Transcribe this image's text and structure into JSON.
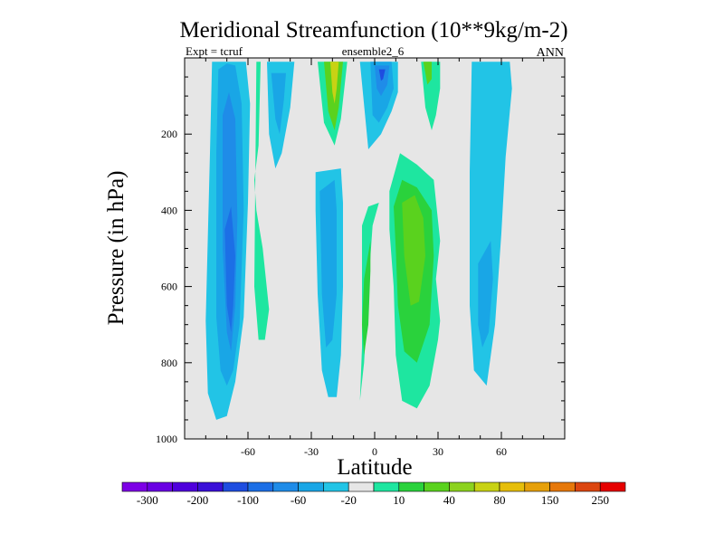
{
  "chart_data": {
    "type": "heatmap",
    "subtype": "filled-contour",
    "title": "Meridional Streamfunction (10**9kg/m-2)",
    "left_label": "Expt = tcruf",
    "center_label": "ensemble2_6",
    "right_label": "ANN",
    "xlabel": "Latitude",
    "ylabel": "Pressure (in hPa)",
    "xlim": [
      -90,
      90
    ],
    "ylim": [
      1000,
      0
    ],
    "x_ticks": [
      -60,
      -30,
      0,
      30,
      60
    ],
    "x_tick_labels": [
      "-60",
      "-30",
      "0",
      "30",
      "60"
    ],
    "y_ticks": [
      200,
      400,
      600,
      800,
      1000
    ],
    "y_tick_labels": [
      "200",
      "400",
      "600",
      "800",
      "1000"
    ],
    "colorbar": {
      "colors": [
        "#7d00e6",
        "#6a00e3",
        "#4f00dc",
        "#3a10d8",
        "#1e4de0",
        "#1c6fe6",
        "#1f8ce8",
        "#19a6e6",
        "#22c4e6",
        "#e6e6e6",
        "#1ee6a0",
        "#2ad23c",
        "#5ad21e",
        "#8cd21e",
        "#c8d214",
        "#e6be0a",
        "#e6a00a",
        "#e6780a",
        "#dc4610",
        "#e60000"
      ],
      "tick_labels": [
        "-300",
        "-200",
        "-100",
        "-60",
        "-20",
        "10",
        "40",
        "80",
        "150",
        "250"
      ]
    },
    "regions": [
      {
        "color": "#22c4e6",
        "lat": [
          -77,
          -74,
          -70,
          -66,
          -61,
          -59,
          -60,
          -62,
          -66,
          -70,
          -75,
          -79,
          -80,
          -78
        ],
        "p": [
          10,
          10,
          10,
          10,
          10,
          120,
          380,
          680,
          850,
          940,
          950,
          880,
          690,
          250
        ]
      },
      {
        "color": "#19a6e6",
        "lat": [
          -74,
          -70,
          -66,
          -63,
          -62,
          -64,
          -67,
          -70,
          -73,
          -75,
          -75
        ],
        "p": [
          30,
          15,
          20,
          120,
          400,
          700,
          820,
          860,
          820,
          680,
          250
        ]
      },
      {
        "color": "#1f8ce8",
        "lat": [
          -72,
          -69,
          -66,
          -65,
          -66,
          -68,
          -70,
          -72
        ],
        "p": [
          150,
          90,
          160,
          420,
          650,
          770,
          720,
          500
        ]
      },
      {
        "color": "#1c6fe6",
        "lat": [
          -71,
          -68,
          -66,
          -67,
          -68,
          -70
        ],
        "p": [
          450,
          390,
          520,
          650,
          720,
          650
        ]
      },
      {
        "color": "#1ee6a0",
        "lat": [
          -56,
          -54,
          -55,
          -57,
          -56,
          -53,
          -50,
          -52,
          -55,
          -57
        ],
        "p": [
          10,
          10,
          230,
          320,
          400,
          500,
          660,
          740,
          740,
          600
        ]
      },
      {
        "color": "#22c4e6",
        "lat": [
          -51,
          -38,
          -40,
          -44,
          -47,
          -50
        ],
        "p": [
          10,
          10,
          130,
          250,
          290,
          200
        ]
      },
      {
        "color": "#19a6e6",
        "lat": [
          -49,
          -42,
          -43,
          -45,
          -47
        ],
        "p": [
          40,
          40,
          110,
          200,
          160
        ]
      },
      {
        "color": "#1ee6a0",
        "lat": [
          -27,
          -13,
          -16,
          -19,
          -24
        ],
        "p": [
          10,
          10,
          160,
          230,
          170
        ]
      },
      {
        "color": "#5ad21e",
        "lat": [
          -24,
          -15,
          -17,
          -19,
          -22
        ],
        "p": [
          10,
          10,
          130,
          190,
          140
        ]
      },
      {
        "color": "#c8d214",
        "lat": [
          -21,
          -17,
          -18,
          -19,
          -20
        ],
        "p": [
          10,
          10,
          80,
          120,
          90
        ]
      },
      {
        "color": "#22c4e6",
        "lat": [
          -7,
          11,
          11,
          8,
          3,
          -3
        ],
        "p": [
          10,
          10,
          90,
          140,
          200,
          240
        ]
      },
      {
        "color": "#19a6e6",
        "lat": [
          -2,
          8,
          9,
          6,
          2,
          -1
        ],
        "p": [
          10,
          10,
          80,
          130,
          170,
          150
        ]
      },
      {
        "color": "#1f8ce8",
        "lat": [
          0,
          7,
          6,
          3,
          1
        ],
        "p": [
          20,
          20,
          70,
          100,
          80
        ]
      },
      {
        "color": "#1e4de0",
        "lat": [
          2,
          5,
          4,
          3
        ],
        "p": [
          30,
          30,
          55,
          60
        ]
      },
      {
        "color": "#1ee6a0",
        "lat": [
          22,
          31,
          31,
          29,
          27,
          24
        ],
        "p": [
          10,
          10,
          80,
          150,
          190,
          130
        ]
      },
      {
        "color": "#5ad21e",
        "lat": [
          23,
          27,
          27,
          25
        ],
        "p": [
          10,
          10,
          55,
          70
        ]
      },
      {
        "color": "#22c4e6",
        "lat": [
          -28,
          -16,
          -15,
          -15,
          -16,
          -18,
          -22,
          -25,
          -27,
          -28
        ],
        "p": [
          300,
          290,
          380,
          600,
          780,
          890,
          890,
          820,
          620,
          400
        ]
      },
      {
        "color": "#19a6e6",
        "lat": [
          -26,
          -19,
          -18,
          -18,
          -20,
          -23,
          -25
        ],
        "p": [
          350,
          320,
          400,
          620,
          740,
          760,
          620
        ]
      },
      {
        "color": "#1ee6a0",
        "lat": [
          -6,
          -3,
          2,
          -1,
          -3,
          -5,
          -7,
          -6,
          -6
        ],
        "p": [
          440,
          390,
          380,
          440,
          600,
          800,
          900,
          760,
          600
        ]
      },
      {
        "color": "#2ad23c",
        "lat": [
          -5,
          -2,
          -2,
          -3,
          -5,
          -6
        ],
        "p": [
          580,
          480,
          560,
          700,
          780,
          700
        ]
      },
      {
        "color": "#1ee6a0",
        "lat": [
          7,
          12,
          20,
          28,
          31,
          29,
          31,
          30,
          26,
          20,
          13,
          10,
          9,
          7
        ],
        "p": [
          350,
          250,
          280,
          320,
          480,
          580,
          690,
          740,
          860,
          920,
          900,
          780,
          600,
          450
        ]
      },
      {
        "color": "#2ad23c",
        "lat": [
          9,
          13,
          20,
          27,
          28,
          26,
          20,
          14,
          11,
          10
        ],
        "p": [
          390,
          320,
          340,
          400,
          520,
          700,
          800,
          770,
          650,
          500
        ]
      },
      {
        "color": "#5ad21e",
        "lat": [
          13,
          19,
          23,
          24,
          21,
          17,
          14
        ],
        "p": [
          380,
          360,
          420,
          520,
          640,
          650,
          520
        ]
      },
      {
        "color": "#22c4e6",
        "lat": [
          46,
          56,
          64,
          65,
          62,
          60,
          57,
          53,
          47,
          45,
          45
        ],
        "p": [
          10,
          10,
          10,
          80,
          260,
          460,
          700,
          860,
          820,
          650,
          300
        ]
      },
      {
        "color": "#19a6e6",
        "lat": [
          49,
          55,
          56,
          54,
          51,
          49,
          49
        ],
        "p": [
          540,
          480,
          580,
          720,
          760,
          700,
          600
        ]
      }
    ]
  }
}
